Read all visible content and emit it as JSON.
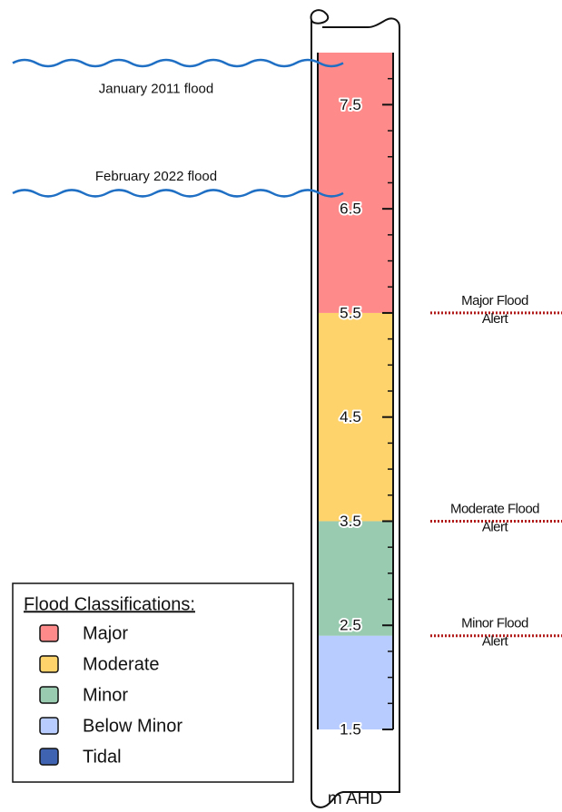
{
  "gauge": {
    "range": [
      1.5,
      8.0
    ],
    "ticks": [
      1.5,
      2.5,
      3.5,
      4.5,
      5.5,
      6.5,
      7.5
    ],
    "minor_ticks": [
      1.75,
      2,
      2.25,
      2.75,
      3,
      3.25,
      3.75,
      4,
      4.25,
      4.75,
      5,
      5.25,
      5.75,
      6,
      6.25,
      6.75,
      7,
      7.25,
      7.75
    ],
    "unit": "m AHD",
    "bands": [
      {
        "name": "Below Minor",
        "from": 1.5,
        "to": 2.4,
        "color": "#b9ccff"
      },
      {
        "name": "Minor",
        "from": 2.4,
        "to": 3.5,
        "color": "#98cbb0"
      },
      {
        "name": "Moderate",
        "from": 3.5,
        "to": 5.5,
        "color": "#ffd36b"
      },
      {
        "name": "Major",
        "from": 5.5,
        "to": 8.0,
        "color": "#ff8a8a"
      }
    ],
    "floods": [
      {
        "label": "January 2011 flood",
        "level": 7.9
      },
      {
        "label": "February 2022 flood",
        "level": 6.65
      }
    ],
    "alerts": [
      {
        "lines": [
          "Major Flood",
          "Alert"
        ],
        "level": 5.5
      },
      {
        "lines": [
          "Moderate Flood",
          "Alert"
        ],
        "level": 3.5
      },
      {
        "lines": [
          "Minor Flood",
          "Alert"
        ],
        "level": 2.4
      }
    ]
  },
  "legend": {
    "title": "Flood Classifications:",
    "items": [
      {
        "label": "Major",
        "color": "#ff8a8a"
      },
      {
        "label": "Moderate",
        "color": "#ffd36b"
      },
      {
        "label": "Minor",
        "color": "#98cbb0"
      },
      {
        "label": "Below Minor",
        "color": "#b9ccff"
      },
      {
        "label": "Tidal",
        "color": "#3f63b0"
      }
    ]
  }
}
